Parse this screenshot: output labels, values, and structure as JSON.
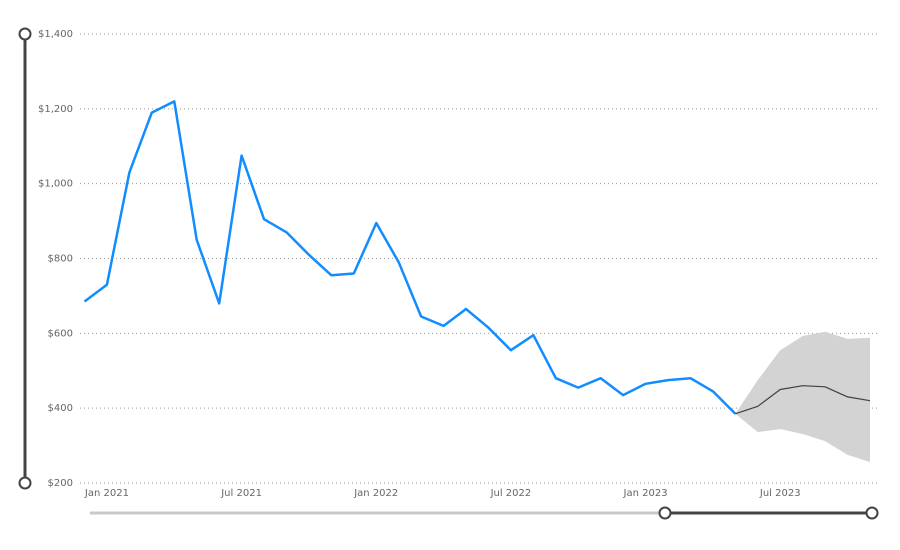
{
  "chart_data": {
    "type": "line",
    "x": [
      "2020-12",
      "2021-01",
      "2021-02",
      "2021-03",
      "2021-04",
      "2021-05",
      "2021-06",
      "2021-07",
      "2021-08",
      "2021-09",
      "2021-10",
      "2021-11",
      "2021-12",
      "2022-01",
      "2022-02",
      "2022-03",
      "2022-04",
      "2022-05",
      "2022-06",
      "2022-07",
      "2022-08",
      "2022-09",
      "2022-10",
      "2022-11",
      "2022-12",
      "2023-01",
      "2023-02",
      "2023-03",
      "2023-04",
      "2023-05",
      "2023-06",
      "2023-07",
      "2023-08",
      "2023-09",
      "2023-10",
      "2023-11"
    ],
    "series": [
      {
        "color": "#118DFF",
        "values": [
          685,
          730,
          1030,
          1190,
          1220,
          850,
          680,
          1075,
          905,
          870,
          810,
          755,
          760,
          895,
          790,
          645,
          620,
          665,
          615,
          555,
          595,
          480,
          455,
          480,
          435,
          465,
          475,
          480,
          445,
          385,
          null,
          null,
          null,
          null,
          null,
          null
        ]
      },
      {
        "color": "#404040",
        "band_color": "#d3d3d3",
        "values": [
          null,
          null,
          null,
          null,
          null,
          null,
          null,
          null,
          null,
          null,
          null,
          null,
          null,
          null,
          null,
          null,
          null,
          null,
          null,
          null,
          null,
          null,
          null,
          null,
          null,
          null,
          null,
          null,
          null,
          385,
          405,
          450,
          460,
          457,
          430,
          420
        ],
        "upper": [
          null,
          null,
          null,
          null,
          null,
          null,
          null,
          null,
          null,
          null,
          null,
          null,
          null,
          null,
          null,
          null,
          null,
          null,
          null,
          null,
          null,
          null,
          null,
          null,
          null,
          null,
          null,
          null,
          null,
          385,
          475,
          555,
          593,
          604,
          585,
          588
        ],
        "lower": [
          null,
          null,
          null,
          null,
          null,
          null,
          null,
          null,
          null,
          null,
          null,
          null,
          null,
          null,
          null,
          null,
          null,
          null,
          null,
          null,
          null,
          null,
          null,
          null,
          null,
          null,
          null,
          null,
          null,
          385,
          336,
          344,
          331,
          312,
          275,
          256
        ]
      }
    ],
    "ylim": [
      200,
      1400
    ],
    "yticks": [
      {
        "value": 200,
        "label": "$200"
      },
      {
        "value": 400,
        "label": "$400"
      },
      {
        "value": 600,
        "label": "$600"
      },
      {
        "value": 800,
        "label": "$800"
      },
      {
        "value": 1000,
        "label": "$1,000"
      },
      {
        "value": 1200,
        "label": "$1,200"
      },
      {
        "value": 1400,
        "label": "$1,400"
      }
    ],
    "xticks": [
      {
        "value": "2021-01",
        "label": "Jan 2021"
      },
      {
        "value": "2021-07",
        "label": "Jul 2021"
      },
      {
        "value": "2022-01",
        "label": "Jan 2022"
      },
      {
        "value": "2022-07",
        "label": "Jul 2022"
      },
      {
        "value": "2023-01",
        "label": "Jan 2023"
      },
      {
        "value": "2023-07",
        "label": "Jul 2023"
      }
    ],
    "grid": true
  }
}
